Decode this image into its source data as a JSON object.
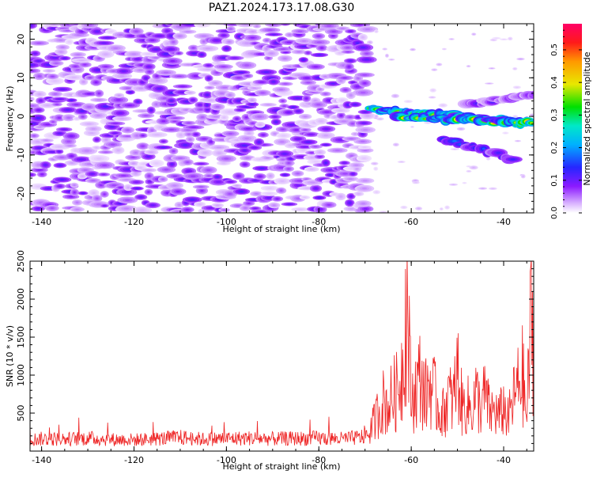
{
  "figure": {
    "title": "PAZ1.2024.173.17.08.G30"
  },
  "colors": {
    "trace": "#ee2222",
    "axis": "#000000",
    "background": "#ffffff"
  },
  "chart_data": [
    {
      "type": "heatmap",
      "title": "",
      "xlabel": "Height of straight line (km)",
      "ylabel": "Frequency (Hz)",
      "xlim": [
        -142.5,
        -33.5
      ],
      "ylim": [
        -25,
        24
      ],
      "xticks": [
        "-140",
        "-120",
        "-100",
        "-80",
        "-60",
        "-40"
      ],
      "yticks": [
        "-20",
        "-10",
        "0",
        "10",
        "20"
      ],
      "colorbar": {
        "label": "Normalized spectral amplitude",
        "range": [
          0,
          0.58
        ],
        "ticks": [
          "0.0",
          "0.1",
          "0.2",
          "0.3",
          "0.4",
          "0.5"
        ],
        "colormap": "rainbow (white at 0, purple, blue, cyan, green, yellow, orange, red, magenta at max)"
      },
      "features": {
        "noise_region_x": [
          -142.5,
          -70
        ],
        "noise_amplitude_range": [
          0.02,
          0.12
        ],
        "signal_tracks": [
          {
            "x": [
              -69,
              -35
            ],
            "freq_hz": [
              2.0,
              -1.5
            ],
            "peak_amplitude": 0.45
          },
          {
            "x": [
              -63,
              -34
            ],
            "freq_hz": [
              0.0,
              -1.8
            ],
            "peak_amplitude": 0.5
          },
          {
            "x": [
              -53,
              -38
            ],
            "freq_hz": [
              -6,
              -11
            ],
            "peak_amplitude": 0.2
          },
          {
            "x": [
              -48,
              -33
            ],
            "freq_hz": [
              3,
              6
            ],
            "peak_amplitude": 0.12
          }
        ]
      }
    },
    {
      "type": "line",
      "title": "",
      "xlabel": "Height of straight line (km)",
      "ylabel": "SNR (10 * v/v)",
      "xlim": [
        -142.5,
        -33.5
      ],
      "ylim": [
        0,
        2500
      ],
      "xticks": [
        "-140",
        "-120",
        "-100",
        "-80",
        "-60",
        "-40"
      ],
      "yticks": [
        "500",
        "1000",
        "1500",
        "2000",
        "2500"
      ],
      "series": [
        {
          "x": [
            -142.5,
            -140,
            -135,
            -130,
            -125,
            -120,
            -115,
            -110,
            -105,
            -100,
            -95,
            -90,
            -85,
            -80,
            -75,
            -71,
            -69,
            -67,
            -66,
            -65,
            -64,
            -63,
            -62,
            -61.5,
            -61,
            -60.5,
            -60,
            -59,
            -58,
            -57,
            -56,
            -55,
            -54,
            -53,
            -52,
            -51,
            -50,
            -49,
            -48,
            -47,
            -46,
            -45,
            -44,
            -43,
            -42,
            -41,
            -40,
            -39,
            -38,
            -37,
            -36,
            -35,
            -34.5,
            -34,
            -33.5
          ],
          "values": [
            180,
            190,
            185,
            200,
            180,
            175,
            190,
            210,
            185,
            195,
            200,
            190,
            195,
            200,
            190,
            210,
            300,
            650,
            800,
            700,
            900,
            950,
            1300,
            1800,
            2500,
            1700,
            800,
            1000,
            1200,
            850,
            1100,
            900,
            650,
            600,
            900,
            750,
            1300,
            700,
            750,
            650,
            900,
            700,
            900,
            600,
            650,
            550,
            700,
            500,
            800,
            1000,
            1250,
            500,
            1500,
            2100,
            1700
          ]
        }
      ]
    }
  ]
}
